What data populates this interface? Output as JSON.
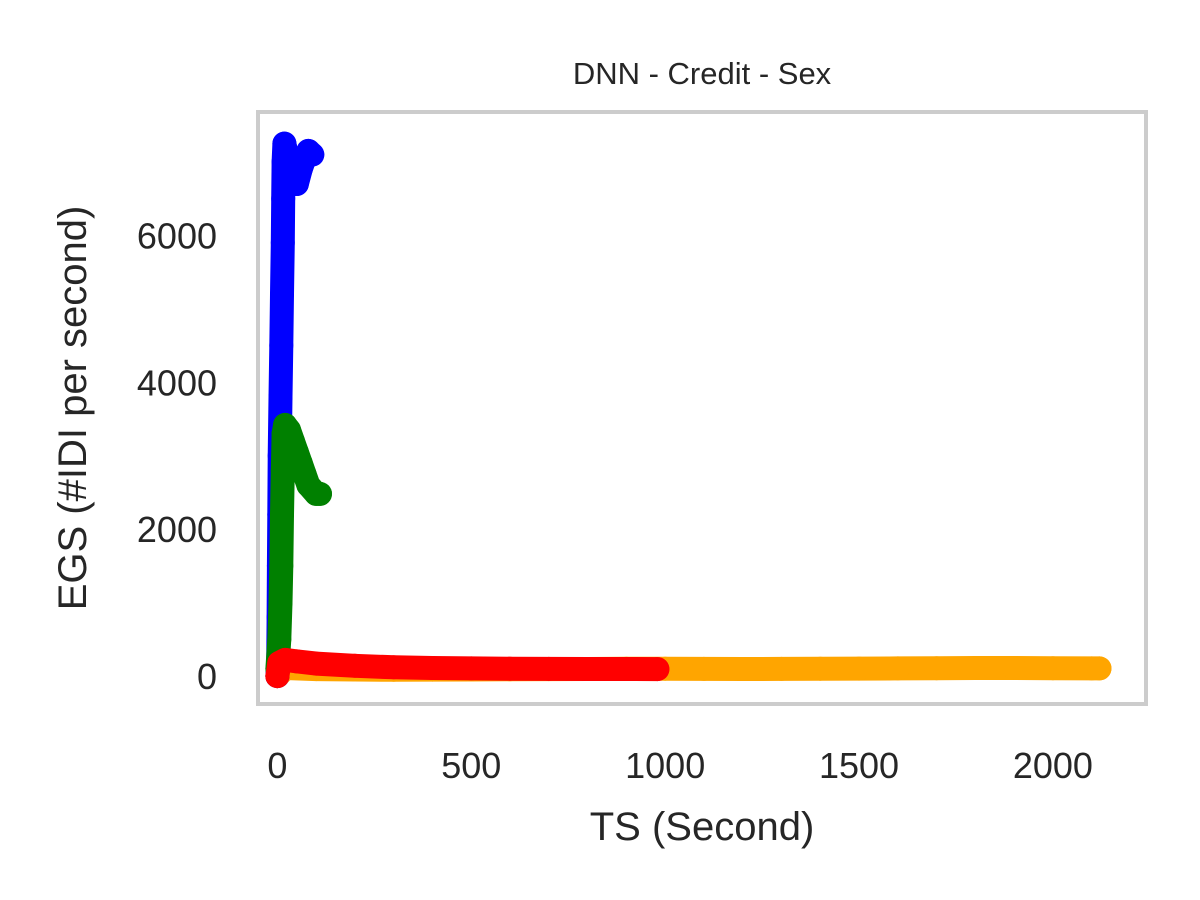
{
  "chart_data": {
    "type": "scatter",
    "title": "DNN - Credit - Sex",
    "xlabel": "TS (Second)",
    "ylabel": "EGS (#IDI  per second)",
    "xlim": [
      -50,
      2240
    ],
    "ylim": [
      -380,
      7680
    ],
    "xticks": [
      0,
      500,
      1000,
      1500,
      2000
    ],
    "yticks": [
      0,
      2000,
      4000,
      6000
    ],
    "grid": false,
    "legend": "none",
    "frame_color": "#cccccc",
    "series": [
      {
        "color": "#ffa500",
        "points": [
          [
            0,
            0
          ],
          [
            20,
            110
          ],
          [
            100,
            95
          ],
          [
            200,
            90
          ],
          [
            300,
            85
          ],
          [
            400,
            88
          ],
          [
            500,
            90
          ],
          [
            600,
            92
          ],
          [
            700,
            95
          ],
          [
            800,
            97
          ],
          [
            900,
            100
          ],
          [
            1000,
            100
          ],
          [
            1100,
            98
          ],
          [
            1200,
            97
          ],
          [
            1300,
            98
          ],
          [
            1400,
            100
          ],
          [
            1500,
            102
          ],
          [
            1600,
            105
          ],
          [
            1700,
            108
          ],
          [
            1800,
            110
          ],
          [
            1900,
            110
          ],
          [
            2000,
            108
          ],
          [
            2100,
            105
          ],
          [
            2120,
            105
          ]
        ]
      },
      {
        "color": "#0000ff",
        "points": [
          [
            0,
            0
          ],
          [
            2,
            200
          ],
          [
            3,
            800
          ],
          [
            4,
            1500
          ],
          [
            5,
            2200
          ],
          [
            6,
            3000
          ],
          [
            8,
            3800
          ],
          [
            10,
            4500
          ],
          [
            12,
            5200
          ],
          [
            14,
            5900
          ],
          [
            15,
            6500
          ],
          [
            16,
            7000
          ],
          [
            18,
            7250
          ],
          [
            20,
            7200
          ],
          [
            30,
            6900
          ],
          [
            40,
            6700
          ],
          [
            50,
            6700
          ],
          [
            60,
            6900
          ],
          [
            70,
            7050
          ],
          [
            80,
            7150
          ],
          [
            90,
            7100
          ]
        ]
      },
      {
        "color": "#008000",
        "points": [
          [
            0,
            100
          ],
          [
            5,
            500
          ],
          [
            8,
            1000
          ],
          [
            10,
            1500
          ],
          [
            12,
            2200
          ],
          [
            14,
            2800
          ],
          [
            16,
            3300
          ],
          [
            20,
            3420
          ],
          [
            30,
            3350
          ],
          [
            40,
            3200
          ],
          [
            50,
            3050
          ],
          [
            60,
            2900
          ],
          [
            70,
            2750
          ],
          [
            80,
            2600
          ],
          [
            100,
            2480
          ],
          [
            110,
            2480
          ]
        ]
      },
      {
        "color": "#ff0000",
        "points": [
          [
            0,
            0
          ],
          [
            5,
            180
          ],
          [
            20,
            220
          ],
          [
            50,
            200
          ],
          [
            100,
            170
          ],
          [
            200,
            140
          ],
          [
            300,
            120
          ],
          [
            400,
            110
          ],
          [
            500,
            105
          ],
          [
            600,
            100
          ],
          [
            700,
            98
          ],
          [
            800,
            97
          ],
          [
            900,
            96
          ],
          [
            980,
            95
          ]
        ]
      }
    ]
  }
}
